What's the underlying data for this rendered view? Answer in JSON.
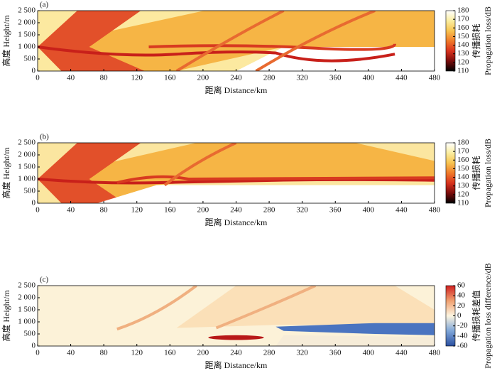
{
  "chart_data": [
    {
      "type": "heatmap",
      "label": "(a)",
      "xlabel": "距离 Distance/km",
      "ylabel": "高度 Height/m",
      "xlim": [
        0,
        480
      ],
      "xticks": [
        0,
        40,
        80,
        120,
        160,
        200,
        240,
        280,
        320,
        360,
        400,
        440,
        480
      ],
      "ylim": [
        0,
        2500
      ],
      "yticks": [
        0,
        500,
        {
          "value": 1000,
          "label": "1 000"
        },
        {
          "value": 1500,
          "label": "1 500"
        },
        {
          "value": 2000,
          "label": "2 000"
        },
        {
          "value": 2500,
          "label": "2 500"
        }
      ],
      "clim": [
        110,
        180
      ],
      "cticks": [
        110,
        120,
        130,
        140,
        150,
        160,
        170,
        180
      ],
      "colorbar_label": [
        "传播损耗",
        "Propagation loss/dB"
      ],
      "colormap": [
        "#000000",
        "#7a0c0c",
        "#d8321e",
        "#f07a2a",
        "#f8c450",
        "#fbeea0",
        "#ffffff"
      ]
    },
    {
      "type": "heatmap",
      "label": "(b)",
      "xlabel": "距离 Distance/km",
      "ylabel": "高度 Height/m",
      "xlim": [
        0,
        480
      ],
      "xticks": [
        0,
        40,
        80,
        120,
        160,
        200,
        240,
        280,
        320,
        360,
        400,
        440,
        480
      ],
      "ylim": [
        0,
        2500
      ],
      "yticks": [
        0,
        500,
        {
          "value": 1000,
          "label": "1 000"
        },
        {
          "value": 1500,
          "label": "1 500"
        },
        {
          "value": 2000,
          "label": "2 000"
        },
        {
          "value": 2500,
          "label": "2 500"
        }
      ],
      "clim": [
        110,
        180
      ],
      "cticks": [
        110,
        120,
        130,
        140,
        150,
        160,
        170,
        180
      ],
      "colorbar_label": [
        "传播损耗",
        "Propagation loss/dB"
      ],
      "colormap": [
        "#000000",
        "#7a0c0c",
        "#d8321e",
        "#f07a2a",
        "#f8c450",
        "#fbeea0",
        "#ffffff"
      ]
    },
    {
      "type": "heatmap",
      "label": "(c)",
      "xlabel": "距离 Distance/km",
      "ylabel": "高度 Height/m",
      "xlim": [
        0,
        480
      ],
      "xticks": [
        0,
        40,
        80,
        120,
        160,
        200,
        240,
        280,
        320,
        360,
        400,
        440,
        480
      ],
      "ylim": [
        0,
        2500
      ],
      "yticks": [
        0,
        500,
        {
          "value": 1000,
          "label": "1 000"
        },
        {
          "value": 1500,
          "label": "1 500"
        },
        {
          "value": 2000,
          "label": "2 000"
        },
        {
          "value": 2500,
          "label": "2 500"
        }
      ],
      "clim": [
        -60,
        60
      ],
      "cticks": [
        -60,
        -40,
        -20,
        0,
        20,
        40,
        60
      ],
      "colorbar_label": [
        "传播损耗差值",
        "Propagation loss difference/dB"
      ],
      "colormap": [
        "#2a4fa0",
        "#7fa6d8",
        "#fdf5e0",
        "#f0a070",
        "#d02020"
      ]
    }
  ]
}
